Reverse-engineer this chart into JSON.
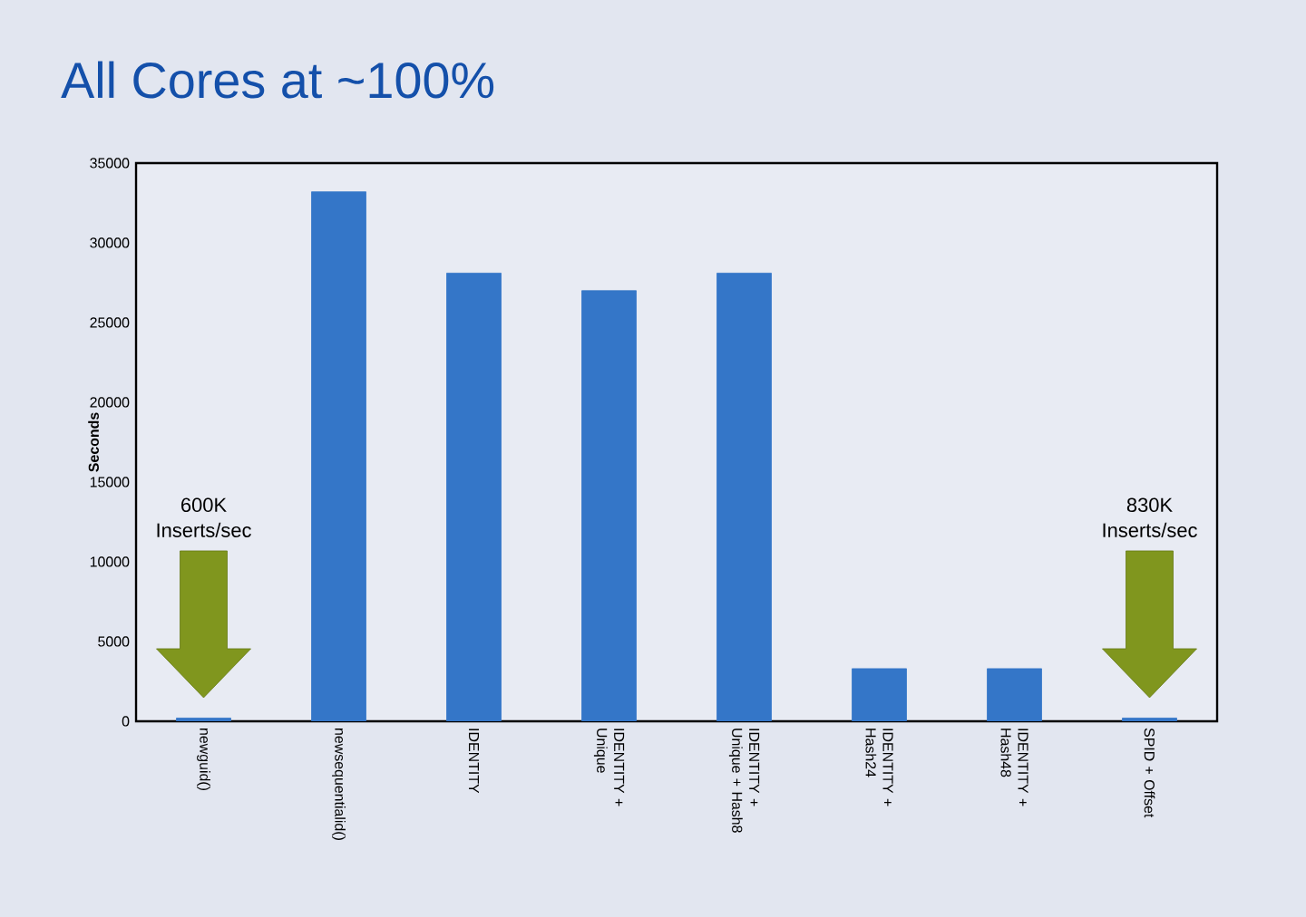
{
  "chart_data": {
    "type": "bar",
    "title": "All Cores at ~100%",
    "ylabel": "Seconds",
    "categories": [
      "newguid()",
      "newsequentialid()",
      "IDENTITY",
      "IDENTITY + Unique",
      "IDENTITY + Unique + Hash8",
      "IDENTITY + Hash24",
      "IDENTITY + Hash48",
      "SPID + Offset"
    ],
    "values": [
      200,
      33200,
      28100,
      27000,
      28100,
      3300,
      3300,
      200
    ],
    "color": "#3476c8",
    "ylim": [
      0,
      35000
    ],
    "yticks": [
      0,
      5000,
      10000,
      15000,
      20000,
      25000,
      30000,
      35000
    ],
    "annotations": [
      "600K Inserts/sec",
      "830K Inserts/sec"
    ]
  }
}
